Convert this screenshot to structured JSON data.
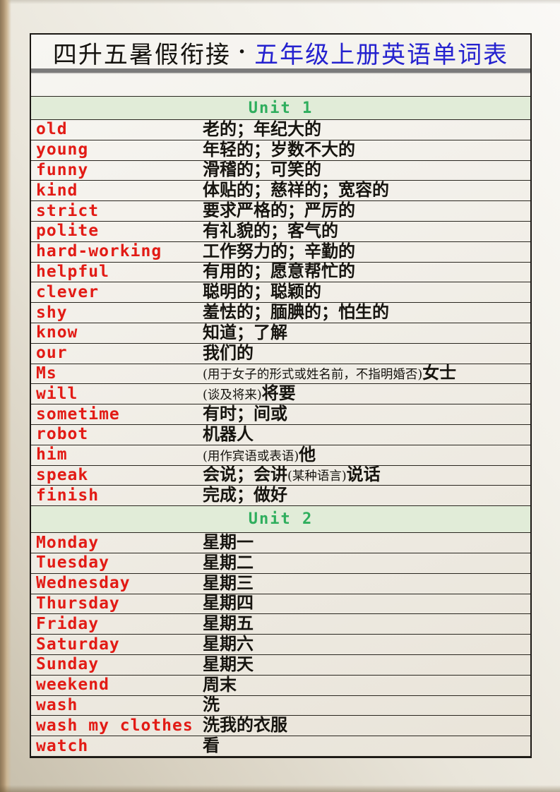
{
  "title": {
    "prefix": "四升五暑假衔接",
    "separator": "·",
    "link": "五年级上册英语单词表"
  },
  "colors": {
    "word": "#e21b15",
    "link": "#2522cf",
    "unit_text": "#2fae5d",
    "unit_bg": "#e1ecd8",
    "title_underline": "#7b7b7b"
  },
  "units": [
    {
      "label": "Unit 1",
      "entries": [
        {
          "word": "old",
          "meaning": [
            {
              "text": "老的；年纪大的"
            }
          ]
        },
        {
          "word": "young",
          "meaning": [
            {
              "text": "年轻的；岁数不大的"
            }
          ]
        },
        {
          "word": "funny",
          "meaning": [
            {
              "text": "滑稽的；可笑的"
            }
          ]
        },
        {
          "word": "kind",
          "meaning": [
            {
              "text": "体贴的；慈祥的；宽容的"
            }
          ]
        },
        {
          "word": "strict",
          "meaning": [
            {
              "text": "要求严格的；严厉的"
            }
          ]
        },
        {
          "word": "polite",
          "meaning": [
            {
              "text": "有礼貌的；客气的"
            }
          ]
        },
        {
          "word": "hard-working",
          "meaning": [
            {
              "text": "工作努力的；辛勤的"
            }
          ]
        },
        {
          "word": "helpful",
          "meaning": [
            {
              "text": "有用的；愿意帮忙的"
            }
          ]
        },
        {
          "word": "clever",
          "meaning": [
            {
              "text": "聪明的；聪颖的"
            }
          ]
        },
        {
          "word": "shy",
          "meaning": [
            {
              "text": "羞怯的；腼腆的；怕生的"
            }
          ]
        },
        {
          "word": "know",
          "meaning": [
            {
              "text": "知道；了解"
            }
          ]
        },
        {
          "word": "our",
          "meaning": [
            {
              "text": "我们的"
            }
          ]
        },
        {
          "word": "Ms",
          "meaning": [
            {
              "text": "(用于女子的形式或姓名前，不指明婚否)",
              "note": true
            },
            {
              "text": "女士"
            }
          ]
        },
        {
          "word": "will",
          "meaning": [
            {
              "text": "(谈及将来)",
              "note": true
            },
            {
              "text": "将要"
            }
          ]
        },
        {
          "word": "sometime",
          "meaning": [
            {
              "text": "有时；间或"
            }
          ]
        },
        {
          "word": "robot",
          "meaning": [
            {
              "text": "机器人"
            }
          ]
        },
        {
          "word": "him",
          "meaning": [
            {
              "text": "(用作宾语或表语)",
              "note": true
            },
            {
              "text": "他"
            }
          ]
        },
        {
          "word": "speak",
          "meaning": [
            {
              "text": "会说；会讲"
            },
            {
              "text": "(某种语言)",
              "note": true
            },
            {
              "text": "说话"
            }
          ]
        },
        {
          "word": "finish",
          "meaning": [
            {
              "text": "完成；做好"
            }
          ]
        }
      ]
    },
    {
      "label": "Unit 2",
      "entries": [
        {
          "word": "Monday",
          "meaning": [
            {
              "text": "星期一"
            }
          ]
        },
        {
          "word": "Tuesday",
          "meaning": [
            {
              "text": "星期二"
            }
          ]
        },
        {
          "word": "Wednesday",
          "meaning": [
            {
              "text": "星期三"
            }
          ]
        },
        {
          "word": "Thursday",
          "meaning": [
            {
              "text": "星期四"
            }
          ]
        },
        {
          "word": "Friday",
          "meaning": [
            {
              "text": "星期五"
            }
          ]
        },
        {
          "word": "Saturday",
          "meaning": [
            {
              "text": "星期六"
            }
          ]
        },
        {
          "word": "Sunday",
          "meaning": [
            {
              "text": "星期天"
            }
          ]
        },
        {
          "word": "weekend",
          "meaning": [
            {
              "text": "周末"
            }
          ]
        },
        {
          "word": "wash",
          "meaning": [
            {
              "text": "洗"
            }
          ]
        },
        {
          "word": "wash my clothes",
          "meaning": [
            {
              "text": "洗我的衣服"
            }
          ]
        },
        {
          "word": "watch",
          "meaning": [
            {
              "text": "看"
            }
          ]
        }
      ]
    }
  ]
}
